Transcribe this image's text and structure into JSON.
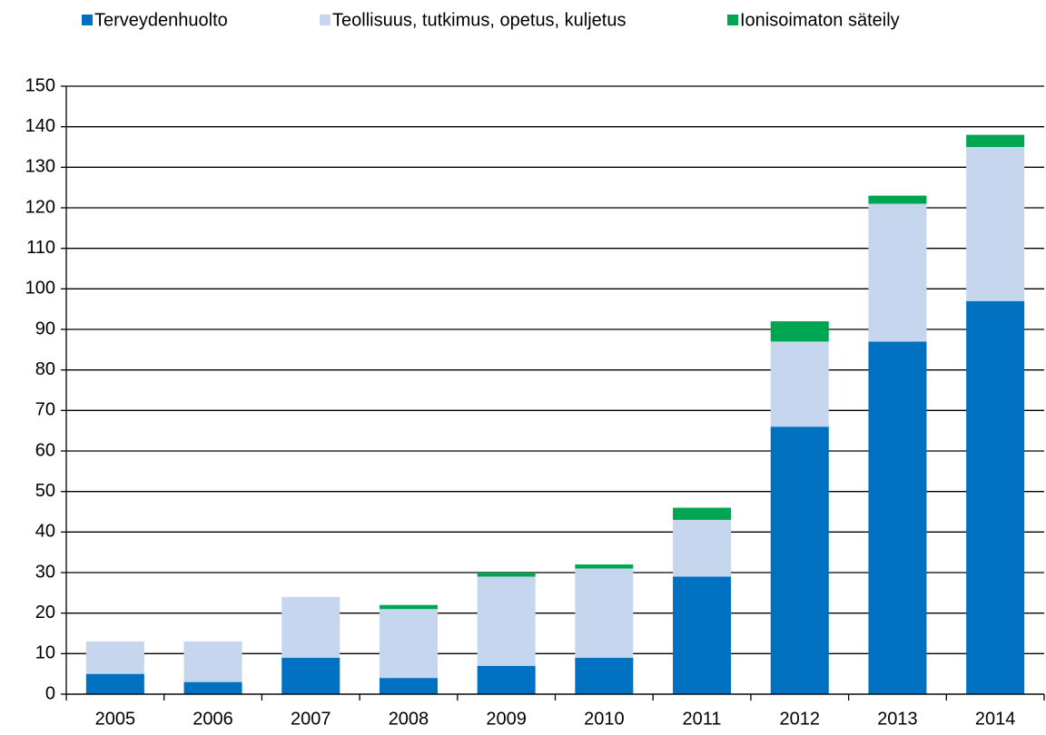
{
  "chart_data": {
    "type": "stacked_bar",
    "categories": [
      "2005",
      "2006",
      "2007",
      "2008",
      "2009",
      "2010",
      "2011",
      "2012",
      "2013",
      "2014"
    ],
    "series": [
      {
        "name": "Terveydenhuolto",
        "color": "#0070c0",
        "values": [
          5,
          3,
          9,
          4,
          7,
          9,
          29,
          66,
          87,
          97
        ]
      },
      {
        "name": "Teollisuus, tutkimus, opetus, kuljetus",
        "color": "#c6d6ef",
        "values": [
          8,
          10,
          15,
          17,
          22,
          22,
          14,
          21,
          34,
          38
        ]
      },
      {
        "name": "Ionisoimaton säteily",
        "color": "#00a651",
        "values": [
          0,
          0,
          0,
          1,
          1,
          1,
          3,
          5,
          2,
          3
        ]
      }
    ],
    "ylim": [
      0,
      150
    ],
    "yticks": [
      0,
      10,
      20,
      30,
      40,
      50,
      60,
      70,
      80,
      90,
      100,
      110,
      120,
      130,
      140,
      150
    ],
    "grid": true,
    "legend": "top"
  }
}
